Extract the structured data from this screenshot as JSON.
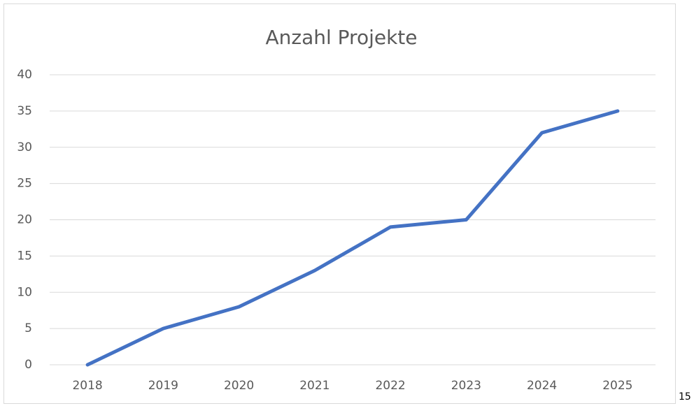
{
  "chart_data": {
    "type": "line",
    "title": "Anzahl Projekte",
    "categories": [
      "2018",
      "2019",
      "2020",
      "2021",
      "2022",
      "2023",
      "2024",
      "2025"
    ],
    "series": [
      {
        "name": "Anzahl Projekte",
        "color": "#4472c4",
        "values": [
          0,
          5,
          8,
          13,
          19,
          20,
          32,
          35
        ]
      }
    ],
    "ylim": [
      0,
      40
    ],
    "yticks": [
      0,
      5,
      10,
      15,
      20,
      25,
      30,
      35,
      40
    ],
    "grid": true,
    "legend": false
  },
  "page_number": "15"
}
